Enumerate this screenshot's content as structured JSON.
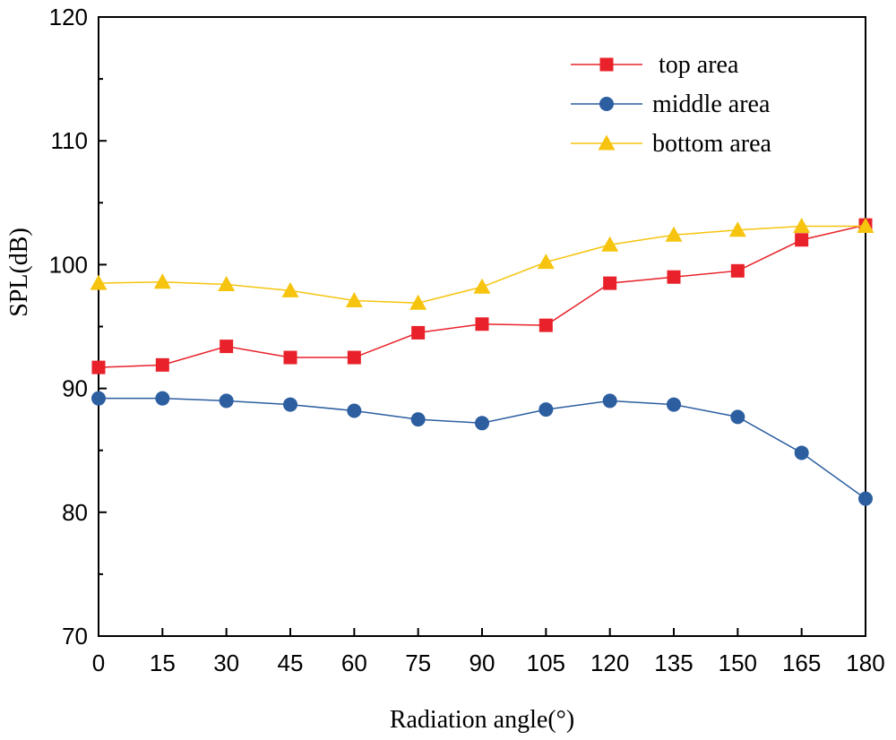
{
  "chart_data": {
    "type": "line",
    "title": "",
    "xlabel": "Radiation angle(°)",
    "ylabel": "SPL(dB)",
    "x": [
      0,
      15,
      30,
      45,
      60,
      75,
      90,
      105,
      120,
      135,
      150,
      165,
      180
    ],
    "xlim": [
      0,
      180
    ],
    "ylim": [
      70,
      120
    ],
    "xticks": [
      0,
      15,
      30,
      45,
      60,
      75,
      90,
      105,
      120,
      135,
      150,
      165,
      180
    ],
    "yticks": [
      70,
      80,
      90,
      100,
      110,
      120
    ],
    "grid": false,
    "legend_position": "top-right",
    "series": [
      {
        "name": " top area",
        "color": "#e8212a",
        "marker": "square",
        "values": [
          91.7,
          91.9,
          93.4,
          92.5,
          92.5,
          94.5,
          95.2,
          95.1,
          98.5,
          99.0,
          99.5,
          102.0,
          103.2
        ]
      },
      {
        "name": "middle area",
        "color": "#2c5ea0",
        "marker": "circle",
        "values": [
          89.2,
          89.2,
          89.0,
          88.7,
          88.2,
          87.5,
          87.2,
          88.3,
          89.0,
          88.7,
          87.7,
          84.8,
          81.1
        ]
      },
      {
        "name": "bottom area",
        "color": "#f6c40e",
        "marker": "triangle",
        "values": [
          98.5,
          98.6,
          98.4,
          97.9,
          97.1,
          96.9,
          98.2,
          100.2,
          101.6,
          102.4,
          102.8,
          103.1,
          103.1
        ]
      }
    ]
  }
}
